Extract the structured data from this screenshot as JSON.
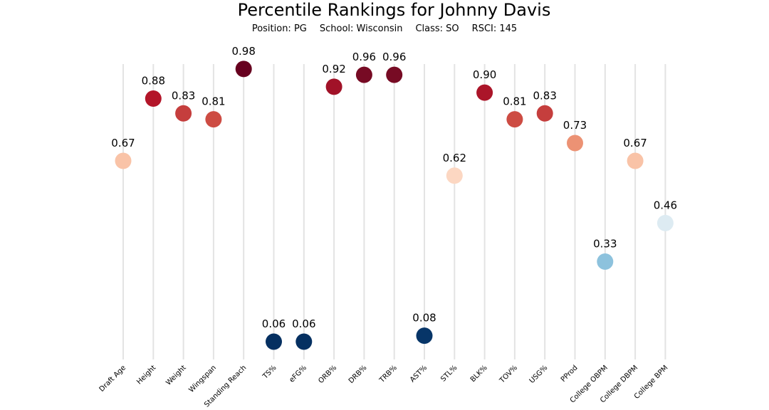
{
  "chart_data": {
    "type": "scatter",
    "title": "Percentile Rankings for Johnny Davis",
    "subtitle": {
      "position": "Position: PG",
      "school": "School: Wisconsin",
      "class": "Class: SO",
      "rsci": "RSCI: 145"
    },
    "xlabel": "",
    "ylabel": "",
    "ylim": [
      0,
      1
    ],
    "grid": "vertical lines at each category",
    "colormap": "red-blue diverging (high = dark red, low = dark blue)",
    "categories": [
      "Draft Age",
      "Height",
      "Weight",
      "Wingspan",
      "Standing Reach",
      "TS%",
      "eFG%",
      "ORB%",
      "DRB%",
      "TRB%",
      "AST%",
      "STL%",
      "BLK%",
      "TOV%",
      "USG%",
      "PProd",
      "College OBPM",
      "College DBPM",
      "College BPM"
    ],
    "values": [
      0.67,
      0.88,
      0.83,
      0.81,
      0.98,
      0.06,
      0.06,
      0.92,
      0.96,
      0.96,
      0.08,
      0.62,
      0.9,
      0.81,
      0.83,
      0.73,
      0.33,
      0.67,
      0.46
    ],
    "labels": [
      "0.67",
      "0.88",
      "0.83",
      "0.81",
      "0.98",
      "0.06",
      "0.06",
      "0.92",
      "0.96",
      "0.96",
      "0.08",
      "0.62",
      "0.90",
      "0.81",
      "0.83",
      "0.73",
      "0.33",
      "0.67",
      "0.46"
    ],
    "colors": [
      "#f9c3a7",
      "#b31529",
      "#c53e3d",
      "#cd4c43",
      "#67001f",
      "#053061",
      "#053061",
      "#a11228",
      "#770b24",
      "#770b24",
      "#073568",
      "#fcd7c2",
      "#ab1529",
      "#cd4c43",
      "#c53e3d",
      "#ec9274",
      "#8dc2dd",
      "#f9c3a7",
      "#ddebf2"
    ]
  }
}
